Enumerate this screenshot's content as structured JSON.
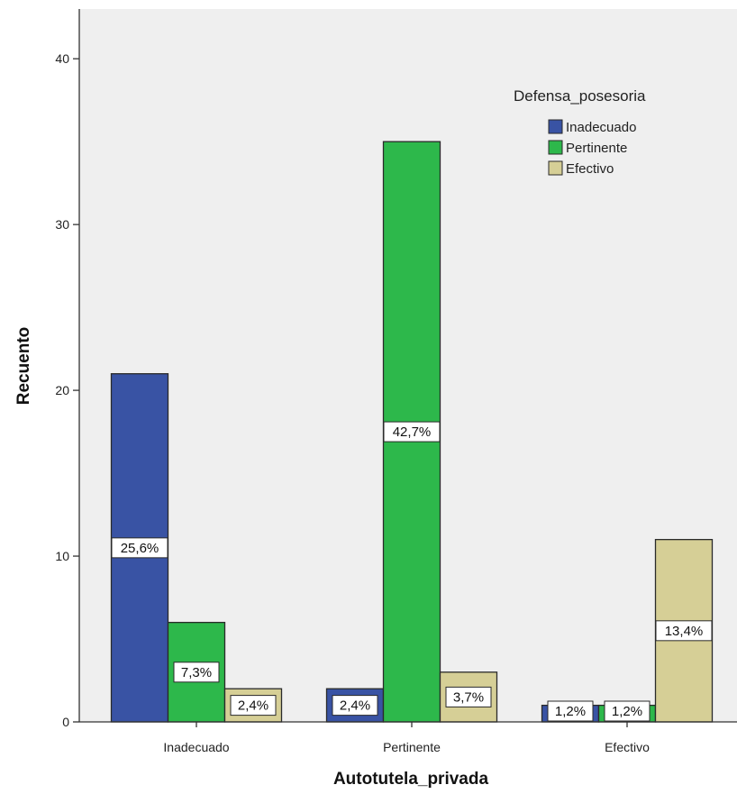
{
  "chart_data": {
    "type": "bar",
    "xlabel": "Autotutela_privada",
    "ylabel": "Recuento",
    "ylim": [
      0,
      43
    ],
    "yticks": [
      0,
      10,
      20,
      30,
      40
    ],
    "categories": [
      "Inadecuado",
      "Pertinente",
      "Efectivo"
    ],
    "legend_title": "Defensa_posesoria",
    "legend_position": "top-right",
    "grid": false,
    "colors": {
      "plot_background": "#efefef",
      "Inadecuado": "#3953a4",
      "Pertinente": "#2db84b",
      "Efectivo": "#d6cf96"
    },
    "series": [
      {
        "name": "Inadecuado",
        "values": [
          21,
          2,
          1
        ],
        "labels": [
          "25,6%",
          "2,4%",
          "1,2%"
        ]
      },
      {
        "name": "Pertinente",
        "values": [
          6,
          35,
          1
        ],
        "labels": [
          "7,3%",
          "42,7%",
          "1,2%"
        ]
      },
      {
        "name": "Efectivo",
        "values": [
          2,
          3,
          11
        ],
        "labels": [
          "2,4%",
          "3,7%",
          "13,4%"
        ]
      }
    ]
  }
}
